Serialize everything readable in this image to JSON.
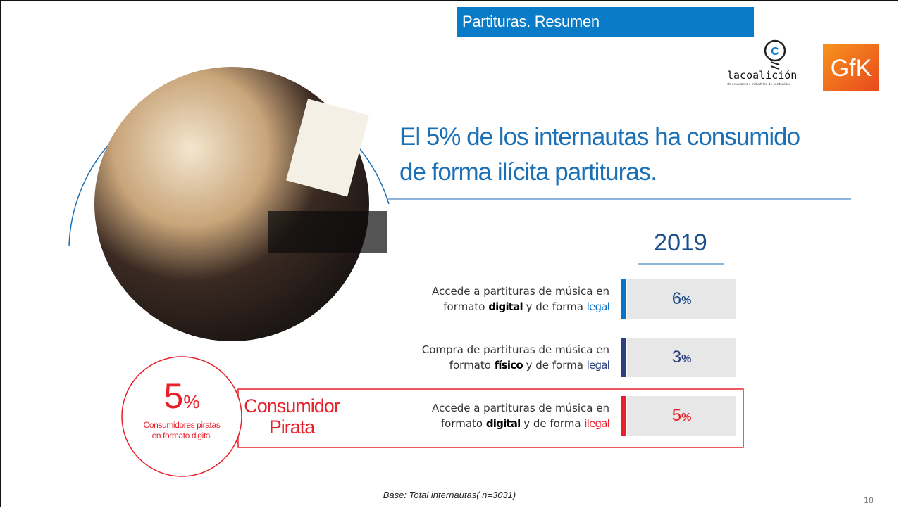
{
  "header": {
    "title": "Partituras. Resumen"
  },
  "logos": {
    "coalicion": {
      "name": "lacoalición",
      "tagline": "de creadores e industrias de contenidos"
    },
    "gfk": "GfK"
  },
  "headline": {
    "lines": [
      "El 5% de los internautas ha consumido",
      "de forma ilícita partituras."
    ]
  },
  "year": "2019",
  "rows": [
    {
      "line1": "Accede a partituras de música en",
      "prefix": "formato ",
      "format": "digital",
      "middle": " y de forma ",
      "legality": "legal",
      "value": 6,
      "unit": "%"
    },
    {
      "line1": "Compra de partituras de música  en",
      "prefix": "formato ",
      "format": "físico",
      "middle": " y de forma ",
      "legality": "legal",
      "value": 3,
      "unit": "%"
    },
    {
      "line1": "Accede a partituras de música en",
      "prefix": "formato ",
      "format": "digital",
      "middle": " y de forma ",
      "legality": "ilegal",
      "value": 5,
      "unit": "%"
    }
  ],
  "pirate": {
    "value": 5,
    "unit": "%",
    "caption": [
      "Consumidores piratas",
      "en formato digital"
    ],
    "label": [
      "Consumidor",
      "Pirata"
    ]
  },
  "footer": {
    "base": "Base: Total internautas( n=3031)",
    "page": "18"
  }
}
